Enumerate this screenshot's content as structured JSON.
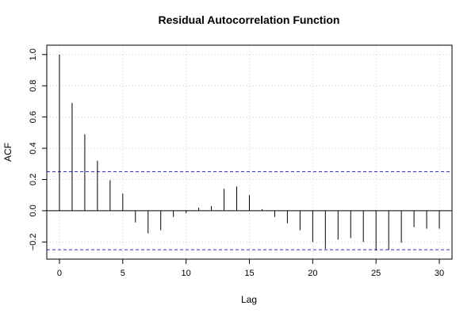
{
  "chart_data": {
    "type": "bar",
    "title": "Residual Autocorrelation Function",
    "xlabel": "Lag",
    "ylabel": "ACF",
    "x": [
      0,
      1,
      2,
      3,
      4,
      5,
      6,
      7,
      8,
      9,
      10,
      11,
      12,
      13,
      14,
      15,
      16,
      17,
      18,
      19,
      20,
      21,
      22,
      23,
      24,
      25,
      26,
      27,
      28,
      29,
      30
    ],
    "values": [
      1.0,
      0.69,
      0.49,
      0.32,
      0.195,
      0.11,
      -0.075,
      -0.145,
      -0.125,
      -0.04,
      -0.015,
      0.02,
      0.03,
      0.14,
      0.155,
      0.1,
      0.01,
      -0.04,
      -0.08,
      -0.125,
      -0.2,
      -0.245,
      -0.185,
      -0.175,
      -0.2,
      -0.255,
      -0.25,
      -0.205,
      -0.105,
      -0.115,
      -0.115
    ],
    "xlim": [
      -1,
      31
    ],
    "ylim": [
      -0.31,
      1.06
    ],
    "xticks": [
      0,
      5,
      10,
      15,
      20,
      25,
      30
    ],
    "yticks": [
      -0.2,
      0.0,
      0.2,
      0.4,
      0.6,
      0.8,
      1.0
    ],
    "xtick_labels": [
      "0",
      "5",
      "10",
      "15",
      "20",
      "25",
      "30"
    ],
    "ytick_labels": [
      "−0.2",
      "0.0",
      "0.2",
      "0.4",
      "0.6",
      "0.8",
      "1.0"
    ],
    "confidence_bounds": [
      0.25,
      -0.25
    ],
    "grid": true,
    "colors": {
      "bars": "#000000",
      "zero_line": "#000000",
      "confidence": "#2a2ad0",
      "grid": "#cfcfcf"
    }
  }
}
